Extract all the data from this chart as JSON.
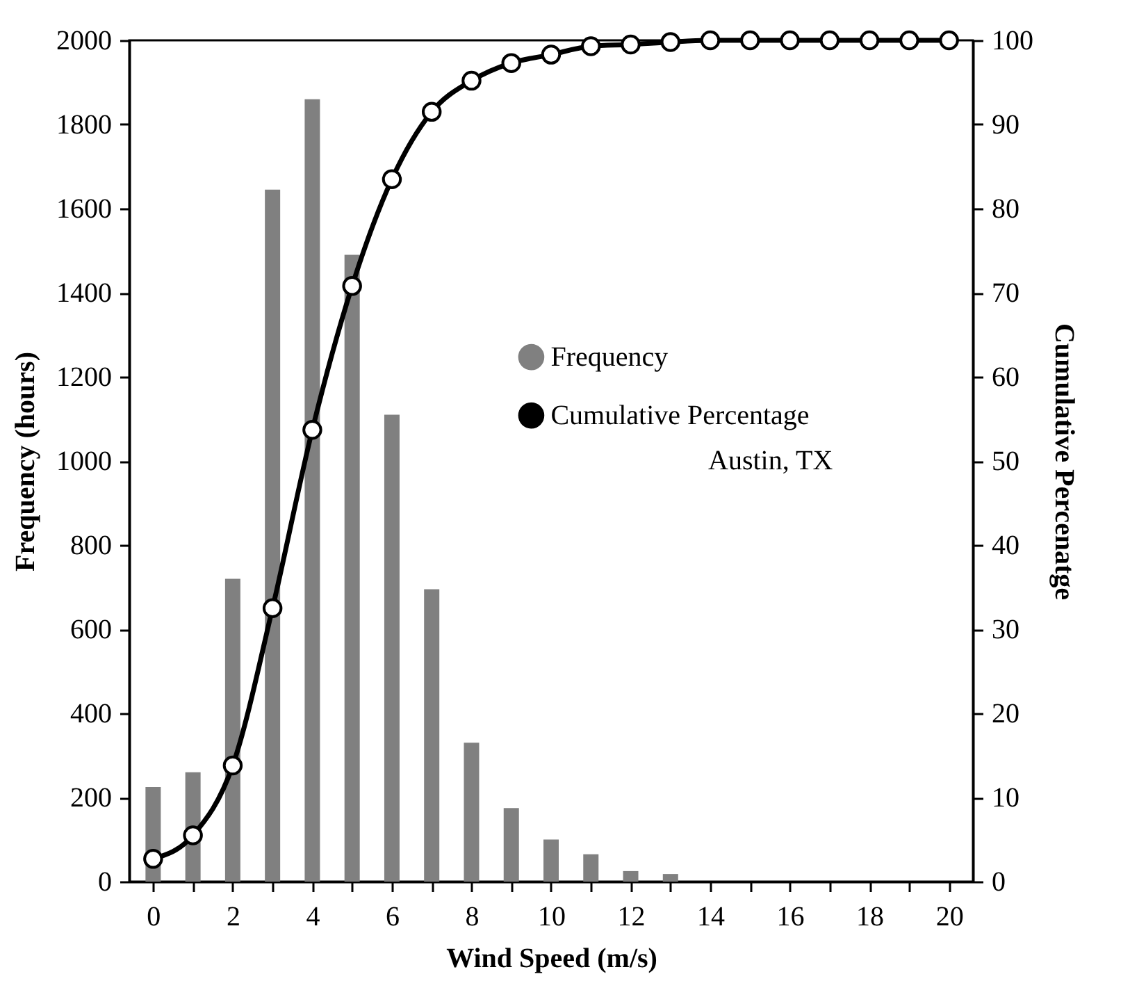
{
  "chart_data": {
    "type": "bar",
    "xlabel": "Wind Speed (m/s)",
    "ylabel": "Frequency (hours)",
    "y2label": "Cumulative Percenatge",
    "x": [
      0,
      1,
      2,
      3,
      4,
      5,
      6,
      7,
      8,
      9,
      10,
      11,
      12,
      13,
      14,
      15,
      16,
      17,
      18,
      19,
      20
    ],
    "series": [
      {
        "name": "Frequency",
        "color": "#808080",
        "values": [
          225,
          260,
          720,
          1645,
          1860,
          1490,
          1110,
          695,
          330,
          175,
          100,
          65,
          25,
          18,
          0,
          0,
          0,
          0,
          0,
          0,
          0
        ]
      },
      {
        "name": "Cumulative Percentage",
        "type": "line",
        "axis": "y2",
        "color": "#000000",
        "marker": "circle",
        "values": [
          2.7,
          5.5,
          13.8,
          32.5,
          53.7,
          70.8,
          83.5,
          91.5,
          95.2,
          97.3,
          98.3,
          99.3,
          99.5,
          99.8,
          100,
          100,
          100,
          100,
          100,
          100,
          100
        ]
      }
    ],
    "xlim": [
      -0.6,
      20.6
    ],
    "xticks": [
      0,
      {
        "value": 1,
        "label": null
      },
      2,
      {
        "value": 3,
        "label": null
      },
      4,
      {
        "value": 5,
        "label": null
      },
      6,
      {
        "value": 7,
        "label": null
      },
      8,
      {
        "value": 9,
        "label": null
      },
      10,
      {
        "value": 11,
        "label": null
      },
      12,
      {
        "value": 13,
        "label": null
      },
      14,
      {
        "value": 15,
        "label": null
      },
      16,
      {
        "value": 17,
        "label": null
      },
      18,
      {
        "value": 19,
        "label": null
      },
      20
    ],
    "ylim": [
      0,
      2000
    ],
    "yticks": [
      0,
      200,
      400,
      600,
      800,
      1000,
      1200,
      1400,
      1600,
      1800,
      2000
    ],
    "y2lim": [
      0,
      100
    ],
    "y2ticks": [
      0,
      10,
      20,
      30,
      40,
      50,
      60,
      70,
      80,
      90,
      100
    ],
    "legend": "right",
    "grid": false,
    "annotations": [
      "Austin, TX"
    ]
  }
}
